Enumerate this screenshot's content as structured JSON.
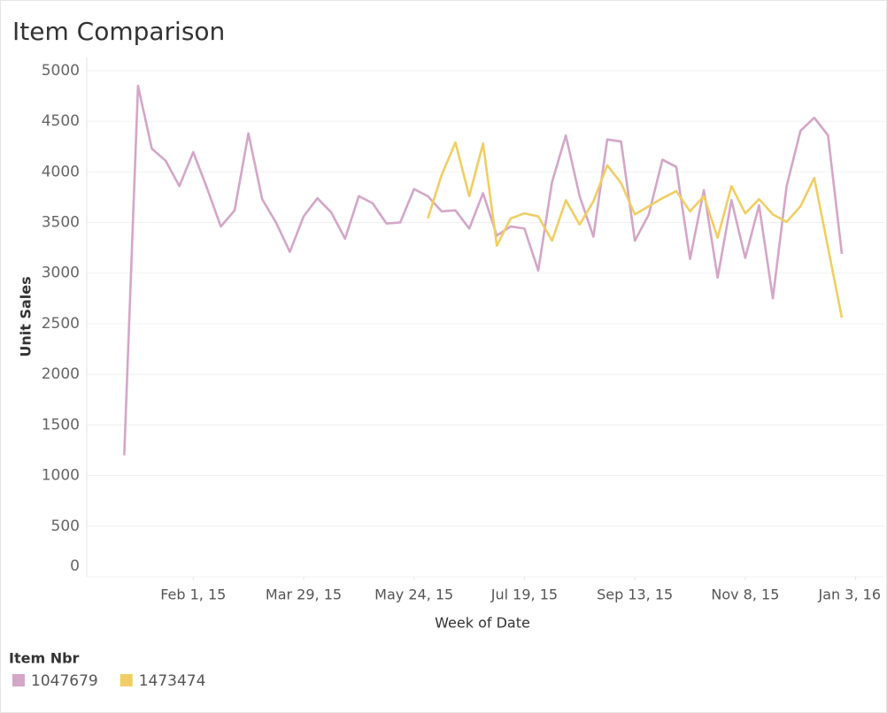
{
  "chart_data": {
    "type": "line",
    "title": "Item Comparison",
    "x_label": "Week of Date",
    "y_label": "Unit Sales",
    "legend_title": "Item Nbr",
    "x": [
      "2014-12-28",
      "2015-01-04",
      "2015-01-11",
      "2015-01-18",
      "2015-01-25",
      "2015-02-01",
      "2015-02-08",
      "2015-02-15",
      "2015-02-22",
      "2015-03-01",
      "2015-03-08",
      "2015-03-15",
      "2015-03-22",
      "2015-03-29",
      "2015-04-05",
      "2015-04-12",
      "2015-04-19",
      "2015-04-26",
      "2015-05-03",
      "2015-05-10",
      "2015-05-17",
      "2015-05-24",
      "2015-05-31",
      "2015-06-07",
      "2015-06-14",
      "2015-06-21",
      "2015-06-28",
      "2015-07-05",
      "2015-07-12",
      "2015-07-19",
      "2015-07-26",
      "2015-08-02",
      "2015-08-09",
      "2015-08-16",
      "2015-08-23",
      "2015-08-30",
      "2015-09-06",
      "2015-09-13",
      "2015-09-20",
      "2015-09-27",
      "2015-10-04",
      "2015-10-11",
      "2015-10-18",
      "2015-10-25",
      "2015-11-01",
      "2015-11-08",
      "2015-11-15",
      "2015-11-22",
      "2015-11-29",
      "2015-12-06",
      "2015-12-13",
      "2015-12-20",
      "2015-12-27"
    ],
    "series": [
      {
        "name": "1047679",
        "color": "#d4a6c8",
        "values": [
          1200,
          4850,
          4230,
          4110,
          3860,
          4195,
          3840,
          3460,
          3620,
          4380,
          3730,
          3500,
          3210,
          3560,
          3740,
          3600,
          3340,
          3760,
          3690,
          3490,
          3500,
          3830,
          3760,
          3610,
          3620,
          3440,
          3790,
          3370,
          3460,
          3440,
          3025,
          3900,
          4360,
          3760,
          3360,
          4320,
          4300,
          3320,
          3575,
          4120,
          4050,
          3140,
          3820,
          2955,
          3720,
          3150,
          3670,
          2750,
          3860,
          4405,
          4535,
          4360,
          3190
        ]
      },
      {
        "name": "1473474",
        "color": "#f1ce63",
        "values": [
          null,
          null,
          null,
          null,
          null,
          null,
          null,
          null,
          null,
          null,
          null,
          null,
          null,
          null,
          null,
          null,
          null,
          null,
          null,
          null,
          null,
          null,
          3540,
          3970,
          4290,
          3760,
          4280,
          3270,
          3540,
          3590,
          3560,
          3320,
          3720,
          3480,
          3710,
          4065,
          3890,
          3580,
          3660,
          3740,
          3810,
          3610,
          3760,
          3350,
          3860,
          3590,
          3730,
          3580,
          3505,
          3660,
          3940,
          3250,
          2560
        ]
      }
    ],
    "xlim": [
      "2014-12-09",
      "2016-01-18"
    ],
    "xticks": [
      {
        "value": "2015-02-01",
        "label": "Feb 1, 15"
      },
      {
        "value": "2015-03-29",
        "label": "Mar 29, 15"
      },
      {
        "value": "2015-05-24",
        "label": "May 24, 15"
      },
      {
        "value": "2015-07-19",
        "label": "Jul 19, 15"
      },
      {
        "value": "2015-09-13",
        "label": "Sep 13, 15"
      },
      {
        "value": "2015-11-08",
        "label": "Nov 8, 15"
      },
      {
        "value": "2016-01-03",
        "label": "Jan 3, 16"
      }
    ],
    "ylim": [
      0,
      5130
    ],
    "yticks": [
      0,
      500,
      1000,
      1500,
      2000,
      2500,
      3000,
      3500,
      4000,
      4500,
      5000
    ],
    "grid": true
  }
}
